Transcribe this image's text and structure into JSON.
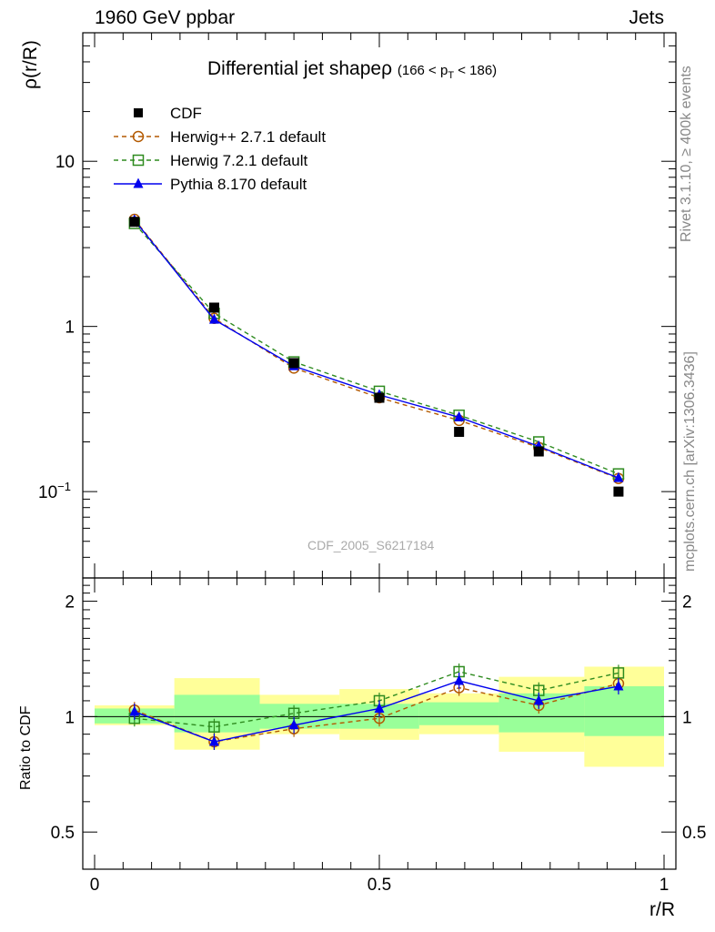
{
  "header": {
    "left": "1960 GeV ppbar",
    "right": "Jets"
  },
  "plot_title": {
    "main": "Differential jet shape",
    "rho": "ρ",
    "cut_pre": "(166 < p",
    "cut_sub": "T",
    "cut_post": " < 186)"
  },
  "side_labels": {
    "rivet": "Rivet 3.1.10, ≥ 400k events",
    "mcplots": "mcplots.cern.ch [arXiv:1306.3436]"
  },
  "analysis_id": "CDF_2005_S6217184",
  "colors": {
    "cdf": "#000000",
    "herwigpp": "#b35900",
    "herwig7": "#2e8b1f",
    "pythia": "#0000ee",
    "band_inner": "#99ff99",
    "band_outer": "#ffff99"
  },
  "chart_data": {
    "type": "line",
    "x": [
      0.07,
      0.21,
      0.35,
      0.5,
      0.64,
      0.78,
      0.92
    ],
    "x_bin_edges": [
      0.0,
      0.14,
      0.29,
      0.43,
      0.57,
      0.71,
      0.86,
      1.0
    ],
    "main_panel": {
      "ylabel": "ρ(r/R)",
      "yscale": "log",
      "ylim": [
        0.03,
        60
      ],
      "y_ticks": [
        {
          "v": 0.1,
          "t": "10",
          "sup": "−1"
        },
        {
          "v": 1,
          "t": "1"
        },
        {
          "v": 10,
          "t": "10"
        }
      ],
      "series": [
        {
          "name": "CDF",
          "style": "data",
          "values": [
            4.3,
            1.3,
            0.6,
            0.37,
            0.23,
            0.175,
            0.1
          ]
        },
        {
          "name": "Herwig++ 2.7.1 default",
          "style": "circle-dashed",
          "values": [
            4.45,
            1.12,
            0.56,
            0.37,
            0.27,
            0.185,
            0.12
          ]
        },
        {
          "name": "Herwig 7.2.1 default",
          "style": "square-dashed",
          "values": [
            4.2,
            1.2,
            0.61,
            0.405,
            0.29,
            0.2,
            0.128
          ]
        },
        {
          "name": "Pythia 8.170 default",
          "style": "triangle-solid",
          "values": [
            4.4,
            1.1,
            0.575,
            0.385,
            0.282,
            0.188,
            0.121
          ]
        }
      ]
    },
    "ratio_panel": {
      "ylabel": "Ratio to CDF",
      "yscale": "log",
      "ylim": [
        0.4,
        2.3
      ],
      "y_ticks": [
        {
          "v": 0.5,
          "t": "0.5"
        },
        {
          "v": 1,
          "t": "1"
        },
        {
          "v": 2,
          "t": "2"
        }
      ],
      "band_inner": [
        [
          0.96,
          1.05
        ],
        [
          0.91,
          1.14
        ],
        [
          0.93,
          1.08
        ],
        [
          0.93,
          1.08
        ],
        [
          0.95,
          1.09
        ],
        [
          0.91,
          1.15
        ],
        [
          0.89,
          1.2
        ]
      ],
      "band_outer": [
        [
          0.95,
          1.07
        ],
        [
          0.82,
          1.26
        ],
        [
          0.9,
          1.14
        ],
        [
          0.87,
          1.18
        ],
        [
          0.9,
          1.15
        ],
        [
          0.81,
          1.27
        ],
        [
          0.74,
          1.35
        ]
      ],
      "series": [
        {
          "name": "Herwig++ 2.7.1 default",
          "style": "circle-dashed",
          "values": [
            1.04,
            0.86,
            0.93,
            0.99,
            1.19,
            1.07,
            1.22
          ]
        },
        {
          "name": "Herwig 7.2.1 default",
          "style": "square-dashed",
          "values": [
            0.99,
            0.94,
            1.02,
            1.1,
            1.31,
            1.17,
            1.3
          ]
        },
        {
          "name": "Pythia 8.170 default",
          "style": "triangle-solid",
          "values": [
            1.03,
            0.86,
            0.95,
            1.05,
            1.24,
            1.1,
            1.2
          ]
        }
      ]
    },
    "x_axis": {
      "label": "r/R",
      "xlim": [
        0,
        1
      ],
      "ticks": [
        {
          "v": 0,
          "t": "0"
        },
        {
          "v": 0.5,
          "t": "0.5"
        },
        {
          "v": 1,
          "t": "1"
        }
      ]
    },
    "legend_position": "top-left"
  }
}
